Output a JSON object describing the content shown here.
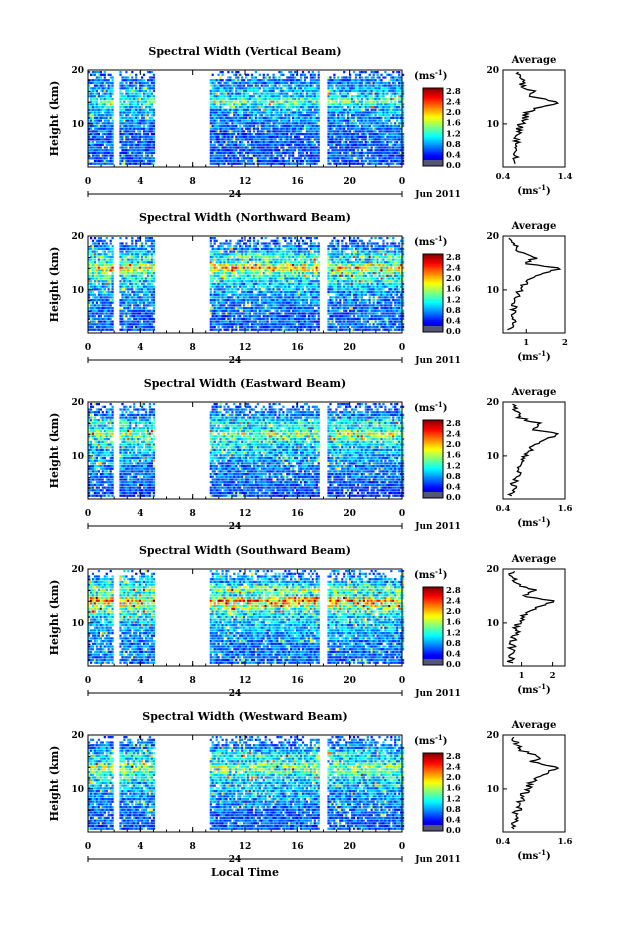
{
  "chart_data": [
    {
      "type": "heatmap",
      "title": "Spectral Width (Vertical Beam)",
      "ylabel": "Height (km)",
      "ylim": [
        2,
        20
      ],
      "yticks": [
        "20",
        "10"
      ],
      "xlim": [
        0,
        24
      ],
      "xticks": [
        "0",
        "4",
        "8",
        "12",
        "16",
        "20",
        "0"
      ],
      "day_label": "24",
      "date_label": "Jun 2011",
      "colorbar": {
        "unit": "(ms",
        "unit_sup": "-1",
        "unit_close": ")",
        "ticks": [
          "2.8",
          "2.4",
          "2.0",
          "1.6",
          "1.2",
          "0.8",
          "0.4",
          "0.0"
        ]
      },
      "gaps": [
        [
          1.8,
          2.3
        ],
        [
          5.0,
          9.3
        ],
        [
          17.7,
          18.3
        ]
      ],
      "profile": {
        "title": "Average",
        "xlabel": "(ms",
        "xlabel_sup": "-1",
        "xlabel_close": ")",
        "xticks": [
          "0.4",
          "1.4"
        ],
        "yticks": [
          "20",
          "10"
        ],
        "xlim": [
          0.4,
          1.4
        ],
        "height": [
          3,
          4,
          5,
          6,
          7,
          8,
          9,
          10,
          11,
          12,
          13,
          14,
          15,
          16,
          17,
          18,
          19
        ],
        "value": [
          0.58,
          0.6,
          0.55,
          0.64,
          0.6,
          0.62,
          0.66,
          0.7,
          0.76,
          0.78,
          0.95,
          1.32,
          0.85,
          0.9,
          0.72,
          0.7,
          0.62
        ]
      }
    },
    {
      "type": "heatmap",
      "title": "Spectral Width (Northward Beam)",
      "ylabel": "Height (km)",
      "ylim": [
        2,
        20
      ],
      "yticks": [
        "20",
        "10"
      ],
      "xlim": [
        0,
        24
      ],
      "xticks": [
        "0",
        "4",
        "8",
        "12",
        "16",
        "20",
        "0"
      ],
      "day_label": "24",
      "date_label": "Jun 2011",
      "colorbar": {
        "unit": "(ms",
        "unit_sup": "-1",
        "unit_close": ")",
        "ticks": [
          "2.8",
          "2.4",
          "2.0",
          "1.6",
          "1.2",
          "0.8",
          "0.4",
          "0.0"
        ]
      },
      "gaps": [
        [
          1.8,
          2.3
        ],
        [
          5.0,
          9.3
        ],
        [
          17.7,
          18.3
        ]
      ],
      "profile": {
        "title": "Average",
        "xlabel": "(ms",
        "xlabel_sup": "-1",
        "xlabel_close": ")",
        "xticks": [
          "1",
          "2"
        ],
        "yticks": [
          "20",
          "10"
        ],
        "xlim": [
          0.4,
          2.0
        ],
        "height": [
          3,
          4,
          5,
          6,
          7,
          8,
          9,
          10,
          11,
          12,
          13,
          14,
          15,
          16,
          17,
          18,
          19
        ],
        "value": [
          0.6,
          0.65,
          0.6,
          0.7,
          0.68,
          0.72,
          0.75,
          0.85,
          0.95,
          1.1,
          1.35,
          1.85,
          0.95,
          1.25,
          0.8,
          0.7,
          0.6
        ]
      }
    },
    {
      "type": "heatmap",
      "title": "Spectral Width (Eastward Beam)",
      "ylabel": "Height (km)",
      "ylim": [
        2,
        20
      ],
      "yticks": [
        "20",
        "10"
      ],
      "xlim": [
        0,
        24
      ],
      "xticks": [
        "0",
        "4",
        "8",
        "12",
        "16",
        "20",
        "0"
      ],
      "day_label": "24",
      "date_label": "Jun 2011",
      "colorbar": {
        "unit": "(ms",
        "unit_sup": "-1",
        "unit_close": ")",
        "ticks": [
          "2.8",
          "2.4",
          "2.0",
          "1.6",
          "1.2",
          "0.8",
          "0.4",
          "0.0"
        ]
      },
      "gaps": [
        [
          1.8,
          2.3
        ],
        [
          5.0,
          9.3
        ],
        [
          17.7,
          18.3
        ]
      ],
      "profile": {
        "title": "Average",
        "xlabel": "(ms",
        "xlabel_sup": "-1",
        "xlabel_close": ")",
        "xticks": [
          "0.4",
          "1.6"
        ],
        "yticks": [
          "20",
          "10"
        ],
        "xlim": [
          0.4,
          1.6
        ],
        "height": [
          3,
          4,
          5,
          6,
          7,
          8,
          9,
          10,
          11,
          12,
          13,
          14,
          15,
          16,
          17,
          18,
          19
        ],
        "value": [
          0.55,
          0.6,
          0.62,
          0.68,
          0.7,
          0.74,
          0.8,
          0.85,
          0.9,
          1.0,
          1.2,
          1.5,
          0.95,
          1.1,
          0.75,
          0.68,
          0.6
        ]
      }
    },
    {
      "type": "heatmap",
      "title": "Spectral Width (Southward Beam)",
      "ylabel": "Height (km)",
      "ylim": [
        2,
        20
      ],
      "yticks": [
        "20",
        "10"
      ],
      "xlim": [
        0,
        24
      ],
      "xticks": [
        "0",
        "4",
        "8",
        "12",
        "16",
        "20",
        "0"
      ],
      "day_label": "24",
      "date_label": "Jun 2011",
      "colorbar": {
        "unit": "(ms",
        "unit_sup": "-1",
        "unit_close": ")",
        "ticks": [
          "2.8",
          "2.4",
          "2.0",
          "1.6",
          "1.2",
          "0.8",
          "0.4",
          "0.0"
        ]
      },
      "gaps": [
        [
          1.8,
          2.3
        ],
        [
          5.0,
          9.3
        ],
        [
          17.7,
          18.3
        ]
      ],
      "profile": {
        "title": "Average",
        "xlabel": "(ms",
        "xlabel_sup": "-1",
        "xlabel_close": ")",
        "xticks": [
          "1",
          "2"
        ],
        "yticks": [
          "20",
          "10"
        ],
        "xlim": [
          0.4,
          2.4
        ],
        "height": [
          3,
          4,
          5,
          6,
          7,
          8,
          9,
          10,
          11,
          12,
          13,
          14,
          15,
          16,
          17,
          18,
          19
        ],
        "value": [
          0.65,
          0.7,
          0.68,
          0.72,
          0.75,
          0.8,
          0.85,
          0.9,
          1.0,
          1.2,
          1.55,
          2.1,
          1.0,
          1.5,
          0.9,
          0.8,
          0.7
        ]
      }
    },
    {
      "type": "heatmap",
      "title": "Spectral Width (Westward Beam)",
      "ylabel": "Height (km)",
      "ylim": [
        2,
        20
      ],
      "yticks": [
        "20",
        "10"
      ],
      "xlim": [
        0,
        24
      ],
      "xticks": [
        "0",
        "4",
        "8",
        "12",
        "16",
        "20",
        "0"
      ],
      "day_label": "24",
      "date_label": "Jun 2011",
      "xlabel": "Local Time",
      "colorbar": {
        "unit": "(ms",
        "unit_sup": "-1",
        "unit_close": ")",
        "ticks": [
          "2.8",
          "2.4",
          "2.0",
          "1.6",
          "1.2",
          "0.8",
          "0.4",
          "0.0"
        ]
      },
      "gaps": [
        [
          1.8,
          2.3
        ],
        [
          5.0,
          9.3
        ],
        [
          17.7,
          18.3
        ]
      ],
      "profile": {
        "title": "Average",
        "xlabel": "(ms",
        "xlabel_sup": "-1",
        "xlabel_close": ")",
        "xticks": [
          "0.4",
          "1.6"
        ],
        "yticks": [
          "20",
          "10"
        ],
        "xlim": [
          0.4,
          1.6
        ],
        "height": [
          3,
          4,
          5,
          6,
          7,
          8,
          9,
          10,
          11,
          12,
          13,
          14,
          15,
          16,
          17,
          18,
          19
        ],
        "value": [
          0.6,
          0.65,
          0.6,
          0.7,
          0.72,
          0.75,
          0.8,
          0.88,
          0.92,
          1.05,
          1.25,
          1.45,
          0.95,
          1.15,
          0.78,
          0.7,
          0.62
        ]
      }
    }
  ]
}
